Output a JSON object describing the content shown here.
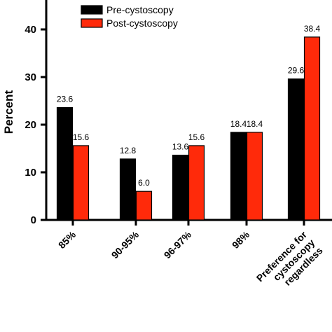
{
  "chart_data": {
    "type": "bar",
    "categories": [
      "85%",
      "90-95%",
      "96-97%",
      "98%",
      [
        "Preference for",
        "cystoscopy",
        "regardless"
      ]
    ],
    "series": [
      {
        "name": "Pre-cystoscopy",
        "values": [
          23.6,
          12.8,
          13.6,
          18.4,
          29.6
        ],
        "labels": [
          "23.6",
          "12.8",
          "13.6",
          "18.4",
          "29.6"
        ],
        "color": "#000000"
      },
      {
        "name": "Post-cystoscopy",
        "values": [
          15.6,
          6.0,
          15.6,
          18.4,
          38.4
        ],
        "labels": [
          "15.6",
          "6.0",
          "15.6",
          "18.4",
          "38.4"
        ],
        "color": "#ff2a0a"
      }
    ],
    "ylabel": "Percent",
    "ylim": [
      0,
      45
    ],
    "yticks": [
      0,
      10,
      20,
      30,
      40
    ],
    "grid": false,
    "legend": "top-center",
    "bar_edge_color": "#000000"
  }
}
